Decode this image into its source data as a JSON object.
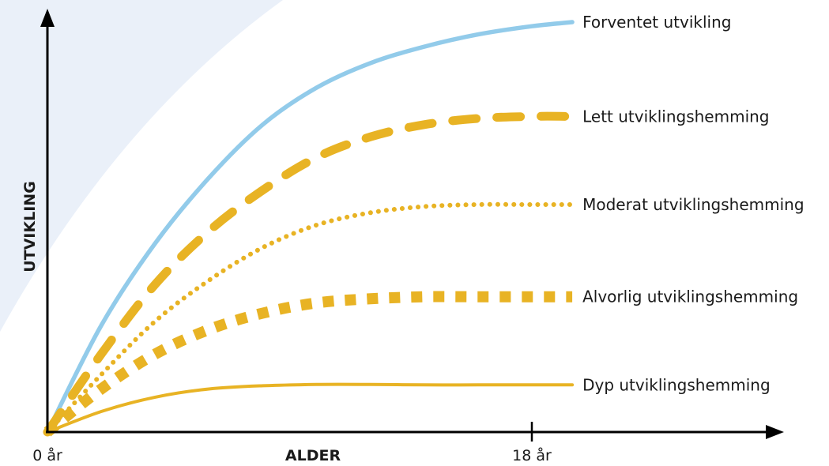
{
  "chart_data": {
    "type": "line",
    "xlabel": "ALDER",
    "ylabel": "UTVIKLING",
    "x_ticks": [
      {
        "value": 0,
        "label": "0 år"
      },
      {
        "value": 18,
        "label": "18 år"
      }
    ],
    "xlim": [
      0,
      27
    ],
    "ylim": [
      0,
      100
    ],
    "y_ticks": [],
    "grid": false,
    "background_color": "#eaf0f9",
    "series": [
      {
        "name": "Forventet utvikling",
        "style": "solid",
        "color": "#92cbea",
        "x": [
          0,
          2,
          4,
          6,
          8,
          10,
          12,
          14,
          16,
          18,
          19.5
        ],
        "y": [
          0,
          26,
          46,
          62,
          75,
          84,
          90,
          94,
          97,
          99,
          100
        ]
      },
      {
        "name": "Lett utviklingshemming",
        "style": "dashed",
        "color": "#e8b324",
        "x": [
          0,
          2,
          4,
          6,
          8,
          10,
          12,
          14,
          16,
          18,
          19.5
        ],
        "y": [
          0,
          19,
          36,
          49,
          59,
          67,
          72,
          75,
          76.5,
          77,
          77
        ]
      },
      {
        "name": "Moderat utviklingshemming",
        "style": "dotted",
        "color": "#e8b324",
        "x": [
          0,
          2,
          4,
          6,
          8,
          10,
          12,
          14,
          16,
          18,
          19.5
        ],
        "y": [
          0,
          14,
          27,
          37,
          45,
          50.5,
          53.5,
          55,
          55.5,
          55.5,
          55.5
        ]
      },
      {
        "name": "Alvorlig utviklingshemming",
        "style": "square-dotted",
        "color": "#e8b324",
        "x": [
          0,
          2,
          4,
          6,
          8,
          10,
          12,
          14,
          16,
          18,
          19.5
        ],
        "y": [
          0,
          10.5,
          19,
          25,
          29,
          31.5,
          32.5,
          33,
          33,
          33,
          33
        ]
      },
      {
        "name": "Dyp utviklingshemming",
        "style": "solid-thin",
        "color": "#e8b324",
        "x": [
          0,
          2,
          4,
          6,
          8,
          10,
          12,
          14,
          16,
          18,
          19.5
        ],
        "y": [
          0,
          5,
          8.5,
          10.5,
          11.3,
          11.6,
          11.6,
          11.5,
          11.5,
          11.5,
          11.5
        ]
      }
    ]
  }
}
